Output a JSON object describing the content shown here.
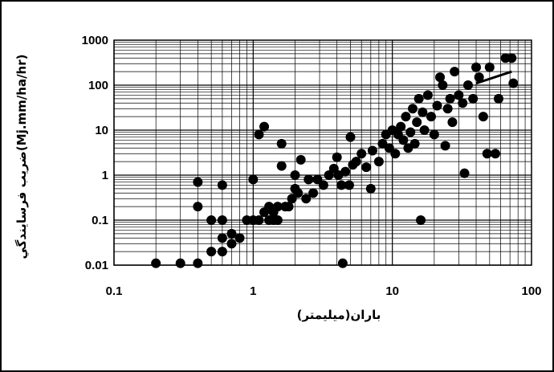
{
  "chart_data": {
    "type": "scatter",
    "xlabel": "باران(ميليمتر)",
    "ylabel": "ضريب فرسايندگي(Mj.mm/ha/hr)",
    "xscale": "log",
    "yscale": "log",
    "xlim": [
      0.1,
      100
    ],
    "ylim": [
      0.01,
      1000
    ],
    "grid": true,
    "x_ticks": [
      "0.1",
      "1",
      "10",
      "100"
    ],
    "y_ticks": [
      "0.01",
      "0.1",
      "1",
      "10",
      "100",
      "1000"
    ],
    "colors": {
      "points": "#000000",
      "grid": "#000000",
      "trendline": "#000000"
    },
    "trendline": {
      "x": [
        40,
        72
      ],
      "y": [
        110,
        200
      ]
    },
    "points": [
      [
        0.2,
        0.011
      ],
      [
        0.3,
        0.011
      ],
      [
        0.4,
        0.011
      ],
      [
        0.4,
        0.2
      ],
      [
        0.4,
        0.7
      ],
      [
        0.5,
        0.1
      ],
      [
        0.5,
        0.02
      ],
      [
        0.6,
        0.02
      ],
      [
        0.6,
        0.04
      ],
      [
        0.6,
        0.1
      ],
      [
        0.6,
        0.6
      ],
      [
        0.7,
        0.03
      ],
      [
        0.7,
        0.05
      ],
      [
        0.8,
        0.04
      ],
      [
        0.9,
        0.1
      ],
      [
        1.0,
        0.1
      ],
      [
        1.0,
        0.8
      ],
      [
        1.1,
        0.1
      ],
      [
        1.1,
        8
      ],
      [
        1.2,
        0.15
      ],
      [
        1.2,
        12
      ],
      [
        1.3,
        0.1
      ],
      [
        1.3,
        0.2
      ],
      [
        1.4,
        0.15
      ],
      [
        1.4,
        0.1
      ],
      [
        1.5,
        0.2
      ],
      [
        1.5,
        0.1
      ],
      [
        1.6,
        5
      ],
      [
        1.6,
        1.6
      ],
      [
        1.7,
        0.2
      ],
      [
        1.8,
        0.2
      ],
      [
        1.9,
        0.3
      ],
      [
        2.0,
        0.5
      ],
      [
        2.0,
        1.0
      ],
      [
        2.1,
        0.4
      ],
      [
        2.2,
        2.2
      ],
      [
        2.4,
        0.3
      ],
      [
        2.5,
        0.8
      ],
      [
        2.7,
        0.4
      ],
      [
        2.9,
        0.8
      ],
      [
        3.2,
        0.6
      ],
      [
        3.5,
        1.0
      ],
      [
        3.8,
        1.4
      ],
      [
        4.0,
        2.5
      ],
      [
        4.1,
        1.0
      ],
      [
        4.3,
        0.6
      ],
      [
        4.4,
        0.011
      ],
      [
        4.6,
        1.2
      ],
      [
        4.9,
        0.6
      ],
      [
        5.2,
        1.7
      ],
      [
        5.5,
        2.0
      ],
      [
        5.0,
        7
      ],
      [
        6.0,
        3.0
      ],
      [
        6.5,
        1.5
      ],
      [
        7.0,
        0.5
      ],
      [
        7.2,
        3.5
      ],
      [
        8.0,
        2.0
      ],
      [
        8.5,
        5.0
      ],
      [
        9.0,
        8.0
      ],
      [
        9.5,
        4.0
      ],
      [
        10,
        10
      ],
      [
        10.5,
        3.0
      ],
      [
        11,
        8
      ],
      [
        11.5,
        12
      ],
      [
        12,
        6
      ],
      [
        12.5,
        20
      ],
      [
        13,
        4
      ],
      [
        13.5,
        9
      ],
      [
        14,
        30
      ],
      [
        14.5,
        5
      ],
      [
        15,
        15
      ],
      [
        15.5,
        50
      ],
      [
        16,
        0.1
      ],
      [
        16.5,
        25
      ],
      [
        17,
        10
      ],
      [
        18,
        60
      ],
      [
        19,
        20
      ],
      [
        20,
        8
      ],
      [
        21,
        35
      ],
      [
        22,
        150
      ],
      [
        23,
        100
      ],
      [
        24,
        4.5
      ],
      [
        25,
        30
      ],
      [
        26,
        50
      ],
      [
        27,
        15
      ],
      [
        28,
        200
      ],
      [
        30,
        60
      ],
      [
        32,
        40
      ],
      [
        33,
        1.1
      ],
      [
        35,
        100
      ],
      [
        38,
        50
      ],
      [
        40,
        250
      ],
      [
        42,
        150
      ],
      [
        45,
        20
      ],
      [
        48,
        3
      ],
      [
        50,
        250
      ],
      [
        55,
        3
      ],
      [
        58,
        50
      ],
      [
        65,
        400
      ],
      [
        72,
        400
      ],
      [
        74,
        110
      ]
    ]
  }
}
